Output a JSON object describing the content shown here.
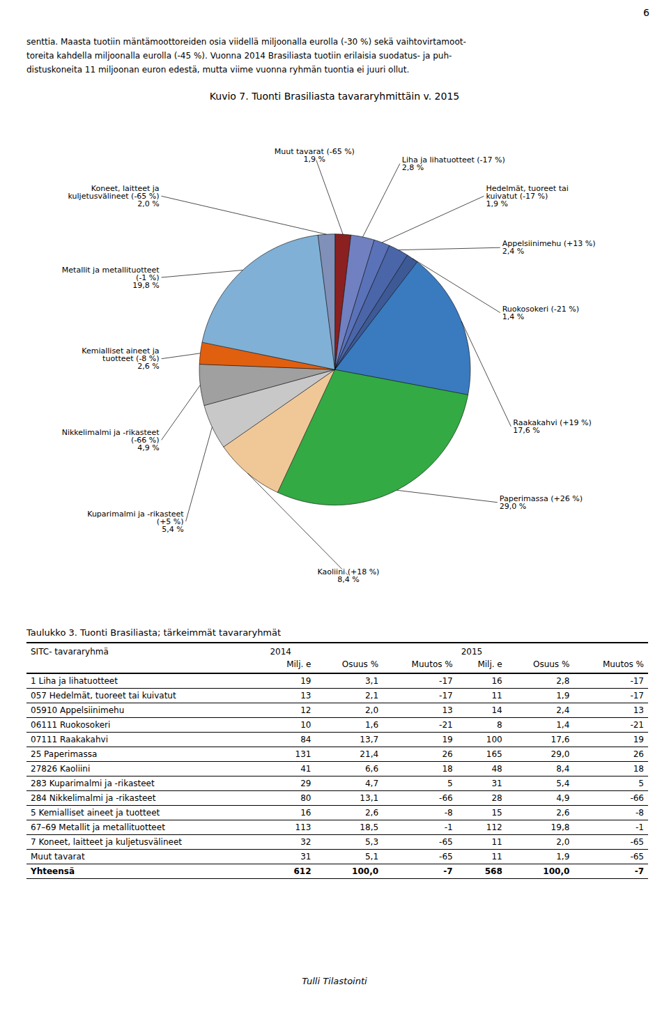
{
  "chart_data": {
    "type": "pie",
    "title": "Kuvio 7. Tuonti Brasiliasta tavararyhmittäin v. 2015",
    "categories": [
      "Muut tavarat (-65 %)",
      "Liha ja lihatuotteet (-17 %)",
      "Hedelmät, tuoreet tai\nkuivatut (-17 %)",
      "Appelsiinimehu (+13 %)",
      "Ruokosokeri (-21 %)",
      "Raakakahvi (+19 %)",
      "Paperimassa (+26 %)",
      "Kaoliini (+18 %)",
      "Kuparimalmi ja -rikasteet\n(+5 %)",
      "Nikkelimalmi ja -rikasteet\n(-66 %)",
      "Kemialliset aineet ja\ntuotteet (-8 %)",
      "Metallit ja metallituotteet\n(-1 %)",
      "Koneet, laitteet ja\nkuljetusvälineet (-65 %)"
    ],
    "values": [
      1.9,
      2.8,
      1.9,
      2.4,
      1.4,
      17.6,
      29.0,
      8.4,
      5.4,
      4.9,
      2.6,
      19.8,
      2.0
    ],
    "value_labels": [
      "1,9 %",
      "2,8 %",
      "1,9 %",
      "2,4 %",
      "1,4 %",
      "17,6 %",
      "29,0 %",
      "8,4 %",
      "5,4 %",
      "4,9 %",
      "2,6 %",
      "19,8 %",
      "2,0 %"
    ],
    "data_labels": true,
    "colors": [
      "#8b2020",
      "#7080c0",
      "#5a72b8",
      "#4a65a8",
      "#3d5a96",
      "#3a7abf",
      "#33aa44",
      "#f0c898",
      "#c8c8c8",
      "#a0a0a0",
      "#e06010",
      "#80b0d5",
      "#8090b8"
    ]
  },
  "page_number": "6",
  "paragraph": [
    "senttia. Maasta tuotiin mäntämoottoreiden osia viidellä miljoonalla eurolla (-30 %) sekä vaihtovirtamoot-",
    "toreita kahdella miljoonalla eurolla (-45 %). Vuonna 2014 Brasiliasta tuotiin erilaisia suodatus- ja puh-",
    "distuskoneita 11 miljoonan euron edestä, mutta viime vuonna ryhmän tuontia ei juuri ollut."
  ],
  "table": {
    "title": "Taulukko 3. Tuonti Brasiliasta; tärkeimmät tavararyhmät",
    "header": [
      "SITC- tavararyhmä",
      "2014",
      "2015"
    ],
    "subheader": [
      "Milj. e",
      "Osuus %",
      "Muutos %",
      "Milj. e",
      "Osuus %",
      "Muutos %"
    ],
    "rows": [
      [
        "1 Liha ja lihatuotteet",
        "19",
        "3,1",
        "-17",
        "16",
        "2,8",
        "-17"
      ],
      [
        "057 Hedelmät, tuoreet tai kuivatut",
        "13",
        "2,1",
        "-17",
        "11",
        "1,9",
        "-17"
      ],
      [
        "05910 Appelsiinimehu",
        "12",
        "2,0",
        "13",
        "14",
        "2,4",
        "13"
      ],
      [
        "06111 Ruokosokeri",
        "10",
        "1,6",
        "-21",
        "8",
        "1,4",
        "-21"
      ],
      [
        "07111 Raakakahvi",
        "84",
        "13,7",
        "19",
        "100",
        "17,6",
        "19"
      ],
      [
        "25 Paperimassa",
        "131",
        "21,4",
        "26",
        "165",
        "29,0",
        "26"
      ],
      [
        "27826 Kaoliini",
        "41",
        "6,6",
        "18",
        "48",
        "8,4",
        "18"
      ],
      [
        "283 Kuparimalmi ja -rikasteet",
        "29",
        "4,7",
        "5",
        "31",
        "5,4",
        "5"
      ],
      [
        "284 Nikkelimalmi ja -rikasteet",
        "80",
        "13,1",
        "-66",
        "28",
        "4,9",
        "-66"
      ],
      [
        "5 Kemialliset aineet ja tuotteet",
        "16",
        "2,6",
        "-8",
        "15",
        "2,6",
        "-8"
      ],
      [
        "67–69 Metallit ja metallituotteet",
        "113",
        "18,5",
        "-1",
        "112",
        "19,8",
        "-1"
      ],
      [
        "7 Koneet, laitteet ja kuljetusvälineet",
        "32",
        "5,3",
        "-65",
        "11",
        "2,0",
        "-65"
      ],
      [
        "Muut tavarat",
        "31",
        "5,1",
        "-65",
        "11",
        "1,9",
        "-65"
      ]
    ],
    "total": [
      "Yhteensä",
      "612",
      "100,0",
      "-7",
      "568",
      "100,0",
      "-7"
    ]
  },
  "footer": "Tulli Tilastointi"
}
